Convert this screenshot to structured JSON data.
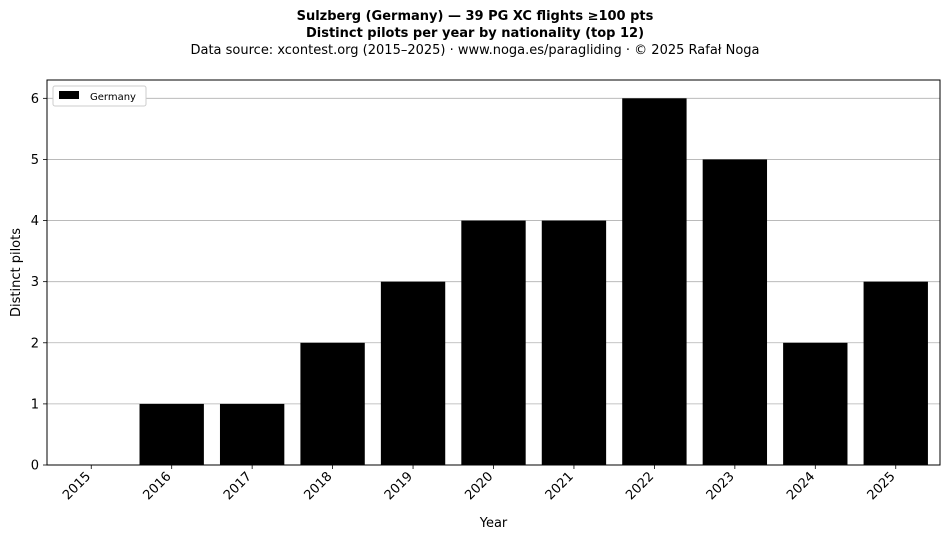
{
  "header": {
    "title_line1": "Sulzberg (Germany)  —  39 PG XC flights ≥100 pts",
    "title_line2": "Distinct pilots per year by nationality (top 12)",
    "source": "Data source: xcontest.org (2015–2025)  ·  www.noga.es/paragliding  ·  © 2025 Rafał Noga"
  },
  "chart_data": {
    "type": "bar",
    "categories": [
      "2015",
      "2016",
      "2017",
      "2018",
      "2019",
      "2020",
      "2021",
      "2022",
      "2023",
      "2024",
      "2025"
    ],
    "series": [
      {
        "name": "Germany",
        "color": "#000000",
        "values": [
          0,
          1,
          1,
          2,
          3,
          4,
          4,
          6,
          5,
          2,
          3
        ]
      }
    ],
    "xlabel": "Year",
    "ylabel": "Distinct pilots",
    "ylim": [
      0,
      6.3
    ],
    "yticks": [
      0,
      1,
      2,
      3,
      4,
      5,
      6
    ],
    "grid": "y",
    "legend_position": "top-left",
    "xtick_rotation": 45
  }
}
